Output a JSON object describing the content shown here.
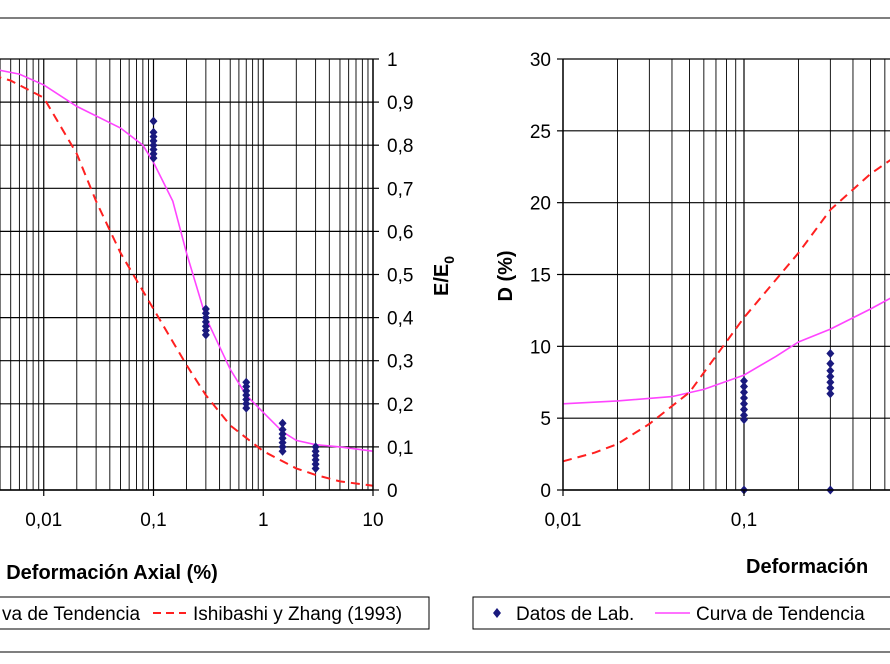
{
  "chart_data": [
    {
      "type": "scatter",
      "title": "",
      "xlabel": "Deformación Axial (%)",
      "ylabel": "E/E0",
      "x_scale": "log",
      "xlim": [
        0.001,
        10
      ],
      "ylim": [
        0,
        1
      ],
      "grid": true,
      "x_ticks": [
        0.001,
        0.01,
        0.1,
        1,
        10
      ],
      "x_tick_labels": [
        "",
        "0,01",
        "0,1",
        "1",
        "10"
      ],
      "y_ticks": [
        0,
        0.1,
        0.2,
        0.3,
        0.4,
        0.5,
        0.6,
        0.7,
        0.8,
        0.9,
        1
      ],
      "y_tick_labels": [
        "0",
        "0,1",
        "0,2",
        "0,3",
        "0,4",
        "0,5",
        "0,6",
        "0,7",
        "0,8",
        "0,9",
        "1"
      ],
      "series": [
        {
          "name": "Datos de Lab.",
          "style": "markers",
          "color": "#1a1a7e",
          "points": [
            [
              0.1,
              0.856
            ],
            [
              0.1,
              0.83
            ],
            [
              0.1,
              0.82
            ],
            [
              0.1,
              0.81
            ],
            [
              0.1,
              0.8
            ],
            [
              0.1,
              0.79
            ],
            [
              0.1,
              0.78
            ],
            [
              0.1,
              0.77
            ],
            [
              0.3,
              0.42
            ],
            [
              0.3,
              0.41
            ],
            [
              0.3,
              0.4
            ],
            [
              0.3,
              0.39
            ],
            [
              0.3,
              0.38
            ],
            [
              0.3,
              0.37
            ],
            [
              0.3,
              0.36
            ],
            [
              0.7,
              0.25
            ],
            [
              0.7,
              0.24
            ],
            [
              0.7,
              0.23
            ],
            [
              0.7,
              0.22
            ],
            [
              0.7,
              0.21
            ],
            [
              0.7,
              0.2
            ],
            [
              0.7,
              0.19
            ],
            [
              1.5,
              0.155
            ],
            [
              1.5,
              0.14
            ],
            [
              1.5,
              0.13
            ],
            [
              1.5,
              0.12
            ],
            [
              1.5,
              0.11
            ],
            [
              1.5,
              0.1
            ],
            [
              1.5,
              0.09
            ],
            [
              3.0,
              0.1
            ],
            [
              3.0,
              0.09
            ],
            [
              3.0,
              0.08
            ],
            [
              3.0,
              0.07
            ],
            [
              3.0,
              0.06
            ],
            [
              3.0,
              0.05
            ]
          ]
        },
        {
          "name": "Curva de Tendencia",
          "style": "line",
          "color": "#ff44ff",
          "points": [
            [
              0.001,
              0.985
            ],
            [
              0.003,
              0.98
            ],
            [
              0.006,
              0.965
            ],
            [
              0.01,
              0.94
            ],
            [
              0.02,
              0.89
            ],
            [
              0.05,
              0.84
            ],
            [
              0.08,
              0.8
            ],
            [
              0.1,
              0.76
            ],
            [
              0.15,
              0.67
            ],
            [
              0.2,
              0.55
            ],
            [
              0.3,
              0.4
            ],
            [
              0.5,
              0.28
            ],
            [
              0.7,
              0.22
            ],
            [
              1,
              0.18
            ],
            [
              1.5,
              0.135
            ],
            [
              2,
              0.115
            ],
            [
              3,
              0.105
            ],
            [
              5,
              0.1
            ],
            [
              10,
              0.09
            ]
          ]
        },
        {
          "name": "Ishibashi y Zhang (1993)",
          "style": "dashed",
          "color": "#ff2020",
          "points": [
            [
              0.001,
              0.99
            ],
            [
              0.002,
              0.98
            ],
            [
              0.005,
              0.95
            ],
            [
              0.01,
              0.91
            ],
            [
              0.02,
              0.78
            ],
            [
              0.03,
              0.67
            ],
            [
              0.05,
              0.55
            ],
            [
              0.1,
              0.42
            ],
            [
              0.2,
              0.29
            ],
            [
              0.3,
              0.22
            ],
            [
              0.5,
              0.15
            ],
            [
              1,
              0.09
            ],
            [
              2,
              0.05
            ],
            [
              3,
              0.035
            ],
            [
              5,
              0.02
            ],
            [
              10,
              0.01
            ]
          ]
        }
      ],
      "legend": {
        "placement": "bottom",
        "entries": [
          "Curva de Tendencia",
          "Ishibashi y Zhang (1993)"
        ],
        "visible_text": [
          "va de Tendencia",
          "Ishibashi y Zhang (1993)"
        ]
      }
    },
    {
      "type": "scatter",
      "title": "",
      "xlabel": "Deformación",
      "ylabel": "D (%)",
      "x_scale": "log",
      "xlim": [
        0.01,
        1
      ],
      "ylim": [
        0,
        30
      ],
      "grid": true,
      "x_ticks": [
        0.01,
        0.1
      ],
      "x_tick_labels": [
        "0,01",
        "0,1"
      ],
      "y_ticks": [
        0,
        5,
        10,
        15,
        20,
        25,
        30
      ],
      "y_tick_labels": [
        "0",
        "5",
        "10",
        "15",
        "20",
        "25",
        "30"
      ],
      "series": [
        {
          "name": "Datos de Lab.",
          "style": "markers",
          "color": "#1a1a7e",
          "points": [
            [
              0.1,
              7.6
            ],
            [
              0.1,
              7.2
            ],
            [
              0.1,
              6.8
            ],
            [
              0.1,
              6.4
            ],
            [
              0.1,
              6.0
            ],
            [
              0.1,
              5.6
            ],
            [
              0.1,
              5.2
            ],
            [
              0.1,
              4.9
            ],
            [
              0.1,
              0
            ],
            [
              0.3,
              9.5
            ],
            [
              0.3,
              8.8
            ],
            [
              0.3,
              8.3
            ],
            [
              0.3,
              7.9
            ],
            [
              0.3,
              7.5
            ],
            [
              0.3,
              7.1
            ],
            [
              0.3,
              6.7
            ],
            [
              0.3,
              0
            ]
          ]
        },
        {
          "name": "Curva de Tendencia",
          "style": "line",
          "color": "#ff44ff",
          "points": [
            [
              0.01,
              6.0
            ],
            [
              0.02,
              6.2
            ],
            [
              0.04,
              6.5
            ],
            [
              0.06,
              7.0
            ],
            [
              0.1,
              8.0
            ],
            [
              0.15,
              9.3
            ],
            [
              0.2,
              10.3
            ],
            [
              0.3,
              11.2
            ],
            [
              0.5,
              12.6
            ],
            [
              0.8,
              14.0
            ],
            [
              1,
              14.5
            ]
          ]
        },
        {
          "name": "Ishibashi y Zhang (1993)",
          "style": "dashed",
          "color": "#ff2020",
          "points": [
            [
              0.01,
              2.0
            ],
            [
              0.015,
              2.6
            ],
            [
              0.02,
              3.2
            ],
            [
              0.03,
              4.6
            ],
            [
              0.05,
              6.8
            ],
            [
              0.1,
              12.0
            ],
            [
              0.2,
              16.5
            ],
            [
              0.3,
              19.5
            ],
            [
              0.5,
              22.0
            ],
            [
              0.8,
              23.8
            ],
            [
              1,
              24.5
            ]
          ]
        }
      ],
      "legend": {
        "placement": "bottom",
        "entries": [
          "Datos de Lab.",
          "Curva de Tendencia"
        ]
      }
    }
  ]
}
